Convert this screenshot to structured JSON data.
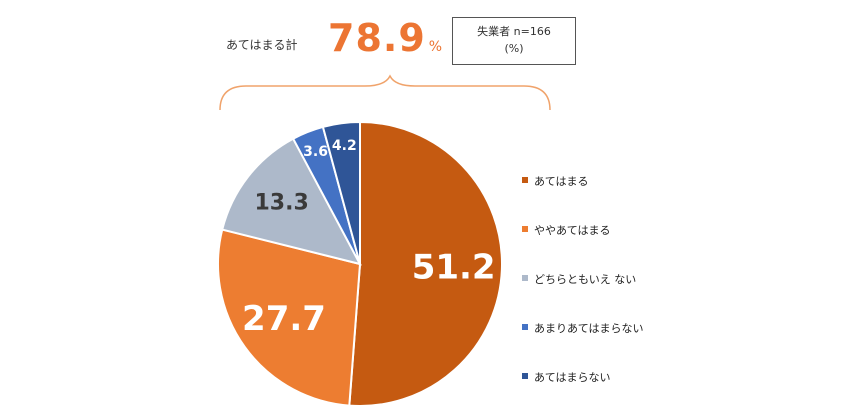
{
  "summary": {
    "label": "あてはまる計",
    "value": "78.9",
    "unit": "%"
  },
  "note": {
    "line1": "失業者  n=166",
    "line2": "(%)"
  },
  "chart_data": {
    "type": "pie",
    "categories": [
      "あてはまる",
      "ややあてはまる",
      "どちらともいえ ない",
      "あまりあてはまらない",
      "あてはまらない"
    ],
    "values": [
      51.2,
      27.7,
      13.3,
      3.6,
      4.2
    ],
    "colors": [
      "#c55a11",
      "#ed7d31",
      "#adb9ca",
      "#4472c4",
      "#2f5597"
    ],
    "legend_position": "right",
    "start": "12 o'clock, clockwise"
  }
}
